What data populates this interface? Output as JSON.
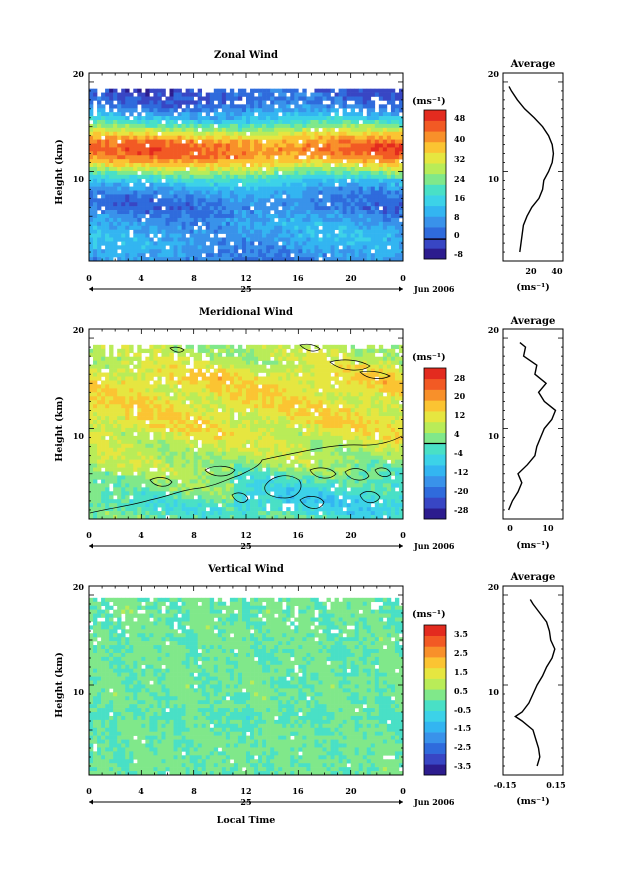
{
  "chart_data": [
    {
      "type": "heatmap",
      "title": "Zonal Wind",
      "ylabel": "Height (km)",
      "x_ticks": [
        "0",
        "4",
        "8",
        "12",
        "16",
        "20",
        "0"
      ],
      "y_ticks": [
        "10",
        "20"
      ],
      "date_day": "25",
      "date_label": "Jun 2006",
      "colorbar": {
        "unit": "(ms⁻¹)",
        "ticks": [
          "48",
          "40",
          "32",
          "24",
          "16",
          "8",
          "0",
          "-8"
        ],
        "min": -8,
        "max": 52,
        "colors": [
          "#2c1c8e",
          "#3846c4",
          "#2f6bdc",
          "#3992ea",
          "#33b5f1",
          "#3cd2e8",
          "#49e0c6",
          "#80e88a",
          "#b9ec58",
          "#e6e640",
          "#fbc432",
          "#f8902a",
          "#f25a24",
          "#e32b1f"
        ]
      },
      "profile": {
        "title": "Average",
        "x_ticks": [
          "20",
          "40"
        ],
        "xlabel": "(ms⁻¹)"
      }
    },
    {
      "type": "heatmap",
      "title": "Meridional Wind",
      "ylabel": "Height (km)",
      "x_ticks": [
        "0",
        "4",
        "8",
        "12",
        "16",
        "20",
        "0"
      ],
      "y_ticks": [
        "10",
        "20"
      ],
      "date_day": "25",
      "date_label": "Jun 2006",
      "colorbar": {
        "unit": "(ms⁻¹)",
        "ticks": [
          "28",
          "20",
          "12",
          "4",
          "-4",
          "-12",
          "-20",
          "-28"
        ],
        "min": -32,
        "max": 32,
        "colors": [
          "#2c1c8e",
          "#3846c4",
          "#2f6bdc",
          "#3992ea",
          "#33b5f1",
          "#3cd2e8",
          "#49e0c6",
          "#80e88a",
          "#b9ec58",
          "#e6e640",
          "#fbc432",
          "#f8902a",
          "#f25a24",
          "#e32b1f"
        ]
      },
      "profile": {
        "title": "Average",
        "x_ticks": [
          "0",
          "10"
        ],
        "xlabel": "(ms⁻¹)"
      }
    },
    {
      "type": "heatmap",
      "title": "Vertical Wind",
      "ylabel": "Height (km)",
      "xlabel": "Local Time",
      "x_ticks": [
        "0",
        "4",
        "8",
        "12",
        "16",
        "20",
        "0"
      ],
      "y_ticks": [
        "10",
        "20"
      ],
      "date_day": "25",
      "date_label": "Jun 2006",
      "colorbar": {
        "unit": "(ms⁻¹)",
        "ticks": [
          "3.5",
          "2.5",
          "1.5",
          "0.5",
          "-0.5",
          "-1.5",
          "-2.5",
          "-3.5"
        ],
        "min": -4,
        "max": 4,
        "colors": [
          "#2c1c8e",
          "#3846c4",
          "#2f6bdc",
          "#3992ea",
          "#33b5f1",
          "#3cd2e8",
          "#49e0c6",
          "#80e88a",
          "#b9ec58",
          "#e6e640",
          "#fbc432",
          "#f8902a",
          "#f25a24",
          "#e32b1f"
        ]
      },
      "profile": {
        "title": "Average",
        "x_ticks": [
          "-0.15",
          "0.15"
        ],
        "xlabel": "(ms⁻¹)"
      }
    }
  ],
  "profiles": {
    "zonal": {
      "xlim": [
        0,
        50
      ],
      "height": [
        1.0,
        2.0,
        3.0,
        4.0,
        5.0,
        6.0,
        7.0,
        8.0,
        9.0,
        10.0,
        11.0,
        12.0,
        13.0,
        14.0,
        15.0,
        16.0,
        17.0,
        18.0,
        19.0,
        19.5
      ],
      "values": [
        14,
        15,
        16,
        17,
        20,
        24,
        30,
        33,
        34,
        38,
        41,
        42,
        41,
        38,
        33,
        26,
        18,
        12,
        7,
        5
      ]
    },
    "meridional": {
      "xlim": [
        -2,
        14
      ],
      "height": [
        1.0,
        2.0,
        3.0,
        4.0,
        5.0,
        6.0,
        7.0,
        8.0,
        9.0,
        10.0,
        11.0,
        12.0,
        13.0,
        14.0,
        15.0,
        16.0,
        17.0,
        18.0,
        19.0,
        19.5
      ],
      "values": [
        -0.5,
        0.5,
        2.0,
        3.0,
        2.0,
        4.5,
        6.5,
        7.0,
        8.0,
        9.0,
        11.0,
        12.0,
        9.0,
        7.5,
        9.5,
        6.5,
        7.0,
        3.5,
        4.0,
        2.5
      ]
    },
    "vertical": {
      "xlim": [
        -0.22,
        0.22
      ],
      "height": [
        1.0,
        2.0,
        3.0,
        4.0,
        5.0,
        6.0,
        6.5,
        7.0,
        8.0,
        9.0,
        10.0,
        11.0,
        12.0,
        13.0,
        14.0,
        15.0,
        16.0,
        17.0,
        18.0,
        19.0,
        19.5
      ],
      "values": [
        0.03,
        0.05,
        0.04,
        0.02,
        0.0,
        -0.08,
        -0.13,
        -0.08,
        -0.03,
        0.0,
        0.03,
        0.07,
        0.1,
        0.14,
        0.16,
        0.13,
        0.12,
        0.1,
        0.05,
        0.0,
        -0.02
      ]
    }
  }
}
